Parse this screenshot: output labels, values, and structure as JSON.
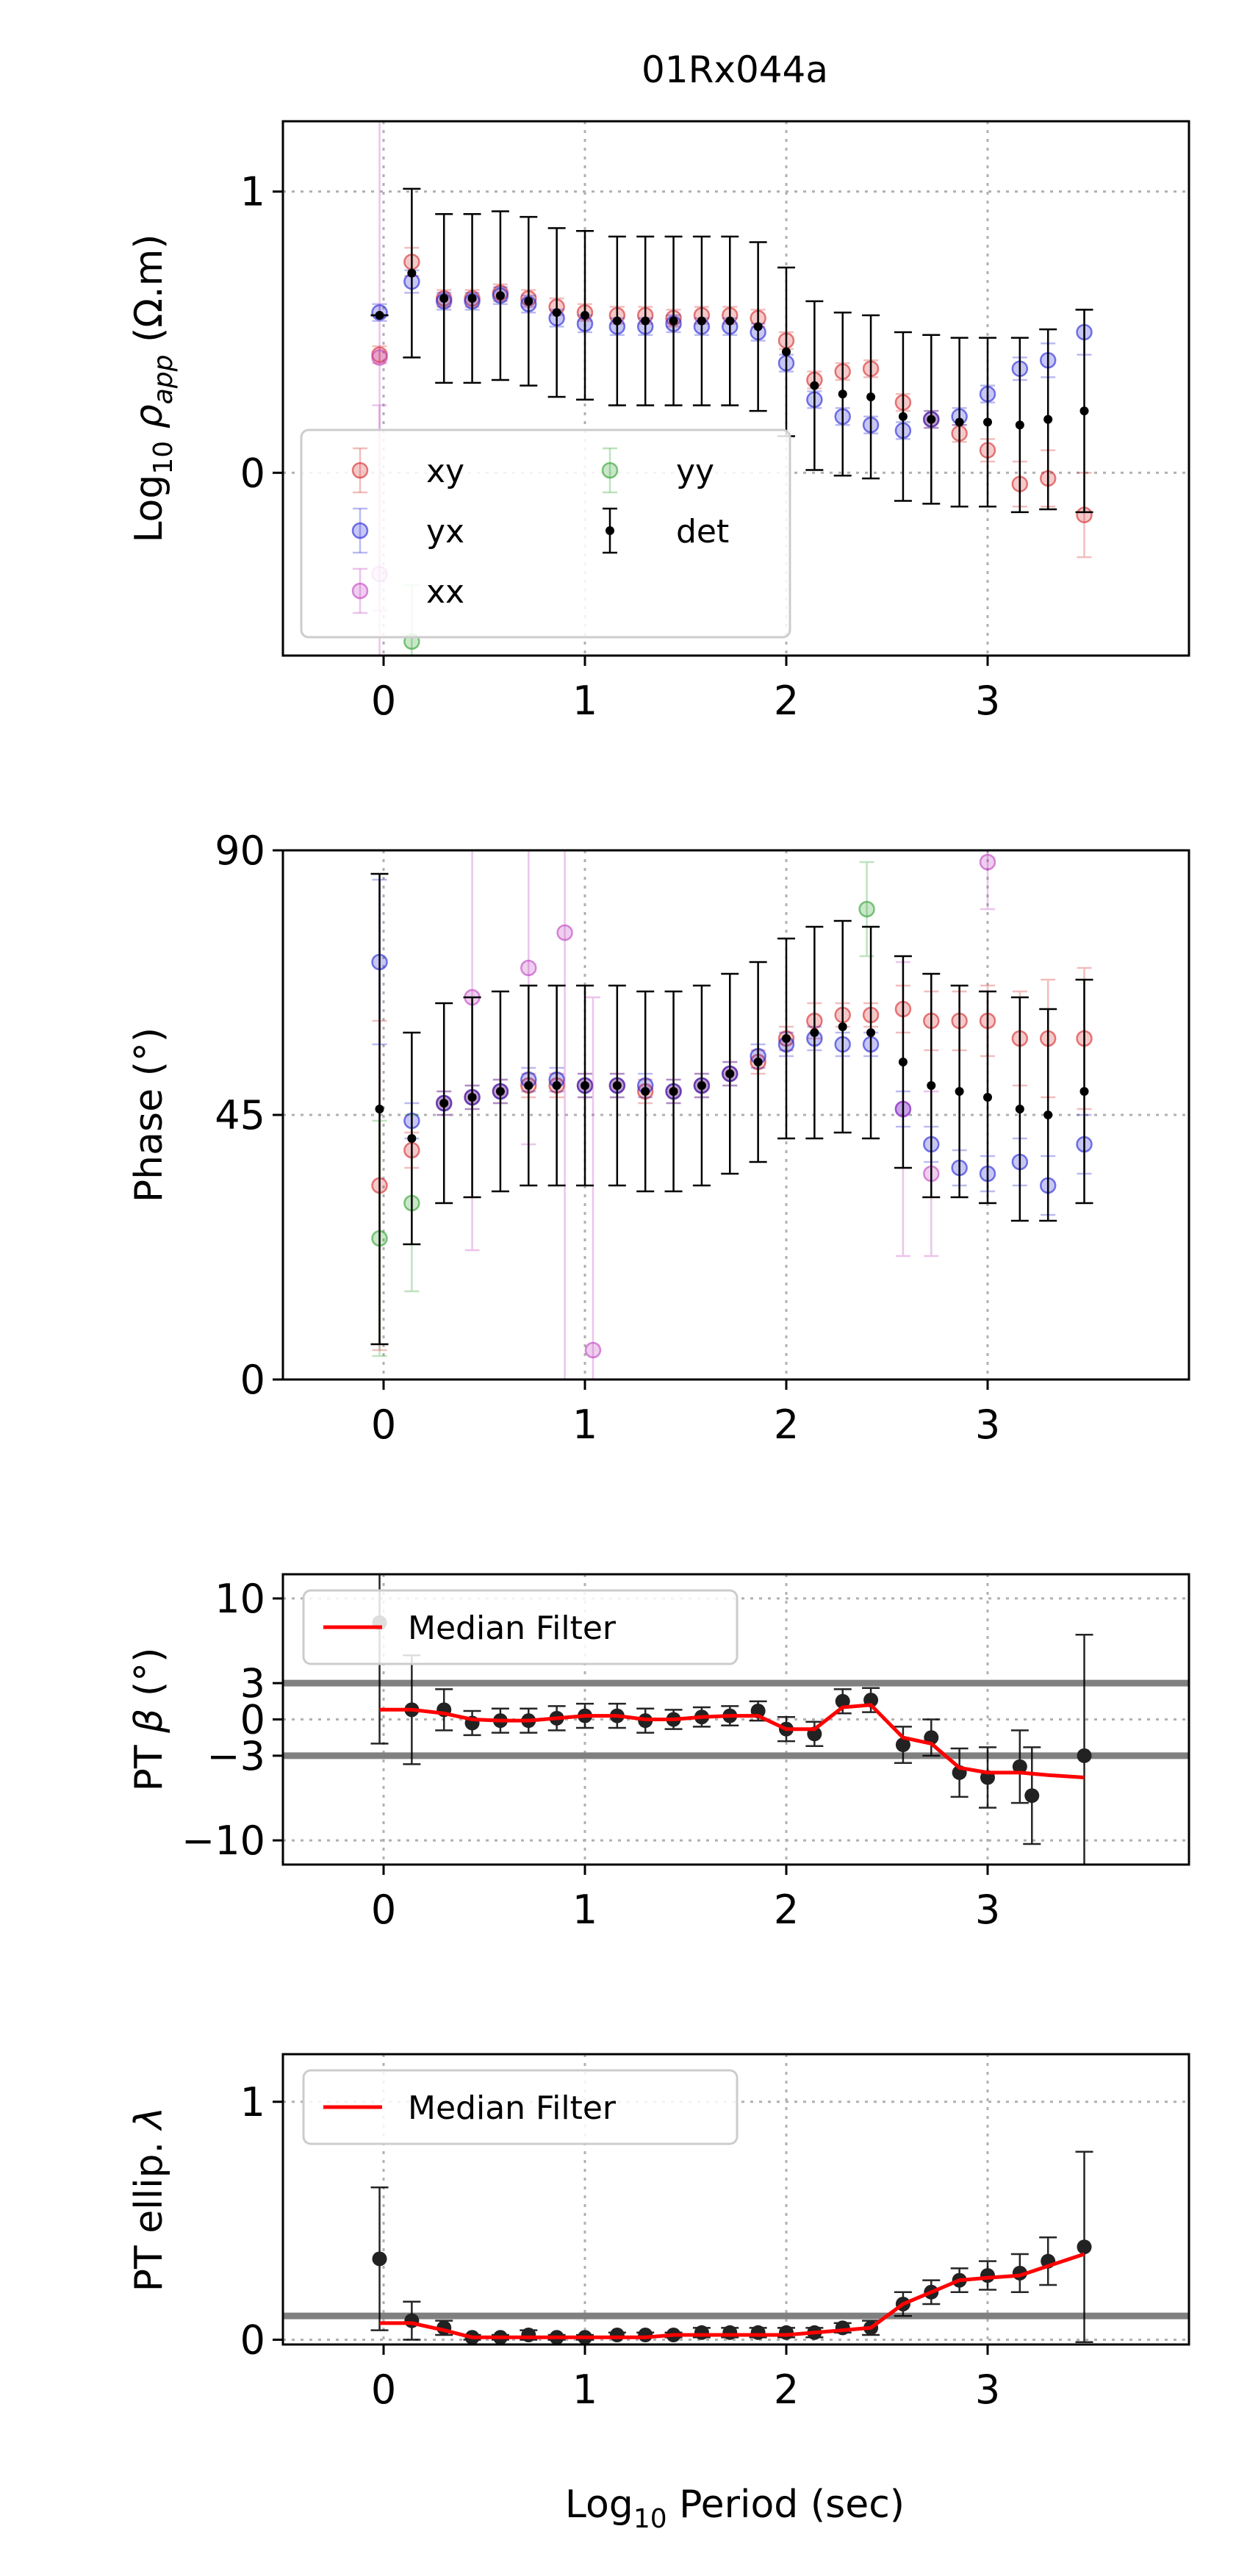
{
  "figure_title": "01Rx044a",
  "x_axis": {
    "label_main": "Log",
    "label_sub": "10",
    "label_rest": " Period (sec)"
  },
  "colors": {
    "xy": "#d62728",
    "yx": "#1f1fd6",
    "xx": "#bf3fbf",
    "yy": "#2ca02c",
    "det": "#000000",
    "median": "#ff0000",
    "threshold": "#808080",
    "grid": "#b0b0b0"
  },
  "chart_data": [
    {
      "id": "rho",
      "type": "scatter",
      "title": "01Rx044a",
      "ylabel": "Log10 rho_app (Ω.m)",
      "xlim": [
        -0.5,
        4.0
      ],
      "ylim": [
        -0.65,
        1.25
      ],
      "xticks": [
        0,
        1,
        2,
        3
      ],
      "yticks": [
        0,
        1
      ],
      "grid": true,
      "legend": {
        "placement": "lower-left",
        "columns": 2,
        "entries": [
          "xy",
          "yx",
          "xx",
          "yy",
          "det"
        ]
      },
      "series": [
        {
          "name": "xy",
          "x": [
            -0.02,
            0.14,
            0.3,
            0.44,
            0.58,
            0.72,
            0.86,
            1.0,
            1.16,
            1.3,
            1.44,
            1.58,
            1.72,
            1.86,
            2.0,
            2.14,
            2.28,
            2.42,
            2.58,
            2.72,
            2.86,
            3.0,
            3.16,
            3.3,
            3.48
          ],
          "y": [
            0.42,
            0.75,
            0.62,
            0.62,
            0.64,
            0.62,
            0.59,
            0.57,
            0.56,
            0.56,
            0.55,
            0.56,
            0.56,
            0.55,
            0.47,
            0.33,
            0.36,
            0.37,
            0.25,
            0.19,
            0.14,
            0.08,
            -0.04,
            -0.02,
            -0.15
          ],
          "err": [
            0.03,
            0.05,
            0.03,
            0.03,
            0.03,
            0.03,
            0.03,
            0.03,
            0.03,
            0.03,
            0.03,
            0.03,
            0.03,
            0.03,
            0.03,
            0.03,
            0.03,
            0.03,
            0.03,
            0.03,
            0.03,
            0.04,
            0.08,
            0.1,
            0.15
          ]
        },
        {
          "name": "yx",
          "x": [
            -0.02,
            0.14,
            0.3,
            0.44,
            0.58,
            0.72,
            0.86,
            1.0,
            1.16,
            1.3,
            1.44,
            1.58,
            1.72,
            1.86,
            2.0,
            2.14,
            2.28,
            2.42,
            2.58,
            2.72,
            2.86,
            3.0,
            3.16,
            3.3,
            3.48
          ],
          "y": [
            0.57,
            0.68,
            0.61,
            0.61,
            0.63,
            0.6,
            0.55,
            0.53,
            0.52,
            0.52,
            0.53,
            0.52,
            0.52,
            0.5,
            0.39,
            0.26,
            0.2,
            0.17,
            0.15,
            0.19,
            0.2,
            0.28,
            0.37,
            0.4,
            0.5
          ],
          "err": [
            0.03,
            0.04,
            0.03,
            0.03,
            0.03,
            0.03,
            0.03,
            0.03,
            0.03,
            0.03,
            0.03,
            0.03,
            0.03,
            0.03,
            0.03,
            0.03,
            0.03,
            0.03,
            0.03,
            0.03,
            0.03,
            0.03,
            0.04,
            0.06,
            0.08
          ]
        },
        {
          "name": "xx",
          "x": [
            -0.02,
            -0.02
          ],
          "y": [
            0.41,
            -0.36
          ],
          "err": [
            0.9,
            0.6
          ]
        },
        {
          "name": "yy",
          "x": [
            0.14
          ],
          "y": [
            -0.6
          ],
          "err": [
            0.2
          ]
        },
        {
          "name": "det",
          "x": [
            -0.02,
            0.14,
            0.3,
            0.44,
            0.58,
            0.72,
            0.86,
            1.0,
            1.16,
            1.3,
            1.44,
            1.58,
            1.72,
            1.86,
            2.0,
            2.14,
            2.28,
            2.42,
            2.58,
            2.72,
            2.86,
            3.0,
            3.16,
            3.3,
            3.48
          ],
          "y": [
            0.56,
            0.71,
            0.62,
            0.62,
            0.63,
            0.61,
            0.57,
            0.56,
            0.54,
            0.54,
            0.54,
            0.54,
            0.54,
            0.52,
            0.43,
            0.31,
            0.28,
            0.27,
            0.2,
            0.19,
            0.18,
            0.18,
            0.17,
            0.19,
            0.22
          ],
          "err": [
            0.0,
            0.3,
            0.3,
            0.3,
            0.3,
            0.3,
            0.3,
            0.3,
            0.3,
            0.3,
            0.3,
            0.3,
            0.3,
            0.3,
            0.3,
            0.3,
            0.29,
            0.29,
            0.3,
            0.3,
            0.3,
            0.3,
            0.31,
            0.32,
            0.36
          ]
        }
      ]
    },
    {
      "id": "phase",
      "type": "scatter",
      "ylabel": "Phase (°)",
      "xlim": [
        -0.5,
        4.0
      ],
      "ylim": [
        0,
        90
      ],
      "xticks": [
        0,
        1,
        2,
        3
      ],
      "yticks": [
        0,
        45,
        90
      ],
      "grid": true,
      "series": [
        {
          "name": "xy",
          "x": [
            -0.02,
            0.14,
            0.3,
            0.44,
            0.58,
            0.72,
            0.86,
            1.0,
            1.16,
            1.3,
            1.44,
            1.58,
            1.72,
            1.86,
            2.0,
            2.14,
            2.28,
            2.42,
            2.58,
            2.72,
            2.86,
            3.0,
            3.16,
            3.3,
            3.48
          ],
          "y": [
            33,
            39,
            47,
            48,
            49,
            50,
            50,
            50,
            50,
            49,
            49,
            50,
            52,
            54,
            58,
            61,
            62,
            62,
            63,
            61,
            61,
            61,
            58,
            58,
            58
          ],
          "err": [
            28,
            3,
            2,
            2,
            2,
            2,
            2,
            2,
            2,
            2,
            2,
            2,
            2,
            2,
            2,
            3,
            2,
            2,
            4,
            5,
            5,
            6,
            8,
            10,
            12
          ]
        },
        {
          "name": "yx",
          "x": [
            -0.02,
            0.14,
            0.3,
            0.44,
            0.58,
            0.72,
            0.86,
            1.0,
            1.16,
            1.3,
            1.44,
            1.58,
            1.72,
            1.86,
            2.0,
            2.14,
            2.28,
            2.42,
            2.58,
            2.72,
            2.86,
            3.0,
            3.16,
            3.3,
            3.48
          ],
          "y": [
            71,
            44,
            47,
            48,
            49,
            51,
            51,
            50,
            50,
            50,
            49,
            50,
            52,
            55,
            57,
            58,
            57,
            57,
            46,
            40,
            36,
            35,
            37,
            33,
            40
          ],
          "err": [
            14,
            3,
            2,
            2,
            2,
            2,
            2,
            2,
            2,
            2,
            2,
            2,
            2,
            2,
            2,
            2,
            2,
            2,
            3,
            3,
            3,
            3,
            4,
            5,
            5
          ]
        },
        {
          "name": "xx",
          "x": [
            0.44,
            0.72,
            0.9,
            1.04,
            2.58,
            2.72,
            3.0
          ],
          "y": [
            65,
            70,
            76,
            5,
            46,
            35,
            88
          ],
          "err": [
            43,
            30,
            76,
            60,
            25,
            14,
            8
          ]
        },
        {
          "name": "yy",
          "x": [
            -0.02,
            0.14,
            2.4
          ],
          "y": [
            24,
            30,
            80
          ],
          "err": [
            20,
            15,
            8
          ]
        },
        {
          "name": "det",
          "x": [
            -0.02,
            0.14,
            0.3,
            0.44,
            0.58,
            0.72,
            0.86,
            1.0,
            1.16,
            1.3,
            1.44,
            1.58,
            1.72,
            1.86,
            2.0,
            2.14,
            2.28,
            2.42,
            2.58,
            2.72,
            2.86,
            3.0,
            3.16,
            3.3,
            3.48
          ],
          "y": [
            46,
            41,
            47,
            48,
            49,
            50,
            50,
            50,
            50,
            49,
            49,
            50,
            52,
            54,
            58,
            59,
            60,
            59,
            54,
            50,
            49,
            48,
            46,
            45,
            49
          ],
          "err": [
            40,
            18,
            17,
            17,
            17,
            17,
            17,
            17,
            17,
            17,
            17,
            17,
            17,
            17,
            17,
            18,
            18,
            18,
            18,
            19,
            18,
            18,
            19,
            18,
            19
          ]
        }
      ]
    },
    {
      "id": "beta",
      "type": "line",
      "ylabel": "PT beta (°)",
      "xlim": [
        -0.5,
        4.0
      ],
      "ylim": [
        -12,
        12
      ],
      "xticks": [
        0,
        1,
        2,
        3
      ],
      "yticks": [
        -10,
        -3,
        0,
        3,
        10
      ],
      "grid": true,
      "thresholds": [
        3,
        -3
      ],
      "legend": {
        "placement": "upper-left",
        "entries": [
          "Median Filter"
        ]
      },
      "points": {
        "x": [
          -0.02,
          0.14,
          0.3,
          0.44,
          0.58,
          0.72,
          0.86,
          1.0,
          1.16,
          1.3,
          1.44,
          1.58,
          1.72,
          1.86,
          2.0,
          2.14,
          2.28,
          2.42,
          2.58,
          2.72,
          2.86,
          3.0,
          3.16,
          3.22,
          3.48
        ],
        "y": [
          8,
          0.8,
          0.8,
          -0.3,
          -0.1,
          -0.1,
          0.1,
          0.3,
          0.3,
          -0.1,
          0.0,
          0.2,
          0.3,
          0.7,
          -0.8,
          -1.2,
          1.5,
          1.6,
          -2.1,
          -1.5,
          -4.4,
          -4.8,
          -3.9,
          -6.3,
          -3.0
        ],
        "err": [
          10,
          4.5,
          1.7,
          1,
          1,
          1,
          1,
          1,
          1,
          1,
          0.8,
          0.8,
          0.8,
          0.8,
          1,
          1,
          1,
          1,
          1.5,
          1.5,
          2,
          2.5,
          3,
          4,
          10
        ]
      },
      "median_filter": {
        "name": "Median Filter",
        "x": [
          -0.02,
          0.14,
          0.3,
          0.44,
          0.58,
          0.72,
          0.86,
          1.0,
          1.16,
          1.3,
          1.44,
          1.58,
          1.72,
          1.86,
          2.0,
          2.14,
          2.28,
          2.42,
          2.58,
          2.72,
          2.86,
          3.0,
          3.16,
          3.3,
          3.48
        ],
        "y": [
          0.8,
          0.8,
          0.5,
          0.0,
          -0.1,
          -0.1,
          0.1,
          0.3,
          0.3,
          0.0,
          0.0,
          0.2,
          0.3,
          0.3,
          -0.8,
          -0.8,
          1.0,
          1.2,
          -1.5,
          -2.0,
          -4.0,
          -4.4,
          -4.4,
          -4.6,
          -4.8
        ]
      }
    },
    {
      "id": "ellip",
      "type": "line",
      "ylabel": "PT ellip. lambda",
      "xlabel": "Log10 Period (sec)",
      "xlim": [
        -0.5,
        4.0
      ],
      "ylim": [
        -0.02,
        1.2
      ],
      "xticks": [
        0,
        1,
        2,
        3
      ],
      "yticks": [
        0,
        1
      ],
      "grid": true,
      "thresholds": [
        0.1
      ],
      "legend": {
        "placement": "upper-left",
        "entries": [
          "Median Filter"
        ]
      },
      "points": {
        "x": [
          -0.02,
          0.14,
          0.3,
          0.44,
          0.58,
          0.72,
          0.86,
          1.0,
          1.16,
          1.3,
          1.44,
          1.58,
          1.72,
          1.86,
          2.0,
          2.14,
          2.28,
          2.42,
          2.58,
          2.72,
          2.86,
          3.0,
          3.16,
          3.3,
          3.48
        ],
        "y": [
          0.34,
          0.08,
          0.05,
          0.01,
          0.01,
          0.02,
          0.01,
          0.01,
          0.02,
          0.02,
          0.02,
          0.03,
          0.03,
          0.03,
          0.03,
          0.03,
          0.05,
          0.05,
          0.15,
          0.2,
          0.25,
          0.27,
          0.28,
          0.33,
          0.39
        ],
        "err": [
          0.3,
          0.08,
          0.03,
          0.01,
          0.01,
          0.02,
          0.01,
          0.01,
          0.01,
          0.01,
          0.01,
          0.02,
          0.02,
          0.02,
          0.02,
          0.02,
          0.02,
          0.03,
          0.05,
          0.05,
          0.05,
          0.06,
          0.08,
          0.1,
          0.4
        ]
      },
      "median_filter": {
        "name": "Median Filter",
        "x": [
          -0.02,
          0.14,
          0.3,
          0.44,
          0.58,
          0.72,
          0.86,
          1.0,
          1.16,
          1.3,
          1.44,
          1.58,
          1.72,
          1.86,
          2.0,
          2.14,
          2.28,
          2.42,
          2.58,
          2.72,
          2.86,
          3.0,
          3.16,
          3.3,
          3.48
        ],
        "y": [
          0.07,
          0.07,
          0.04,
          0.01,
          0.01,
          0.01,
          0.01,
          0.01,
          0.01,
          0.01,
          0.02,
          0.02,
          0.02,
          0.02,
          0.02,
          0.03,
          0.04,
          0.05,
          0.15,
          0.2,
          0.25,
          0.26,
          0.27,
          0.31,
          0.36
        ]
      }
    }
  ]
}
